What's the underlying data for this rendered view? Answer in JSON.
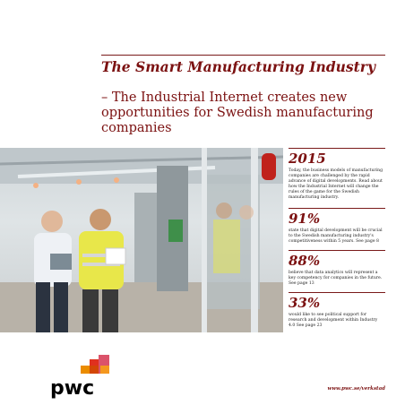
{
  "header": {
    "title": "The Smart Manufacturing Industry",
    "subtitle": "– The Industrial Internet creates new opportunities for Swedish manufacturing companies"
  },
  "stats": [
    {
      "value": "2015",
      "text": "Today, the business models of manufacturing companies are challenged by the rapid advance of digital developments. Read about how the Industrial Internet will change the rules of the game for the Swedish manufacturing industry."
    },
    {
      "value": "91%",
      "text": "state that digital development will be crucial to the Swedish manufacturing industry's competitiveness within 5 years. See page 8"
    },
    {
      "value": "88%",
      "text": "believe that data analytics will represent a key competency for companies in the future. See page 13"
    },
    {
      "value": "33%",
      "text": "would like to see political support for research and development within Industry 4.0 See page 23"
    }
  ],
  "logo": {
    "text": "pwc"
  },
  "footer": {
    "url": "www.pwc.se/verkstad"
  },
  "colors": {
    "brand": "#7b1111",
    "logo_orange": "#e0301e",
    "logo_yellow": "#eb8c00",
    "logo_pink": "#db536a"
  }
}
